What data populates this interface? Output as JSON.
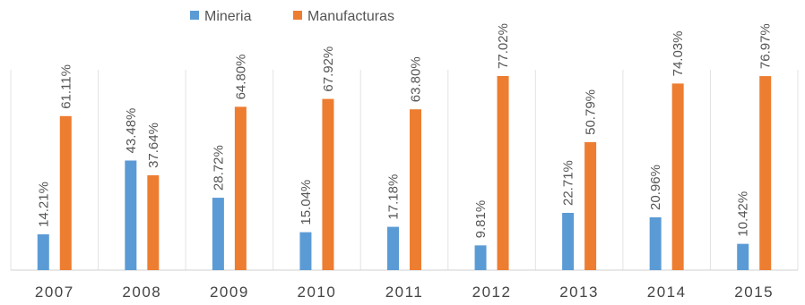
{
  "chart_data": {
    "type": "bar",
    "categories": [
      "2007",
      "2008",
      "2009",
      "2010",
      "2011",
      "2012",
      "2013",
      "2014",
      "2015"
    ],
    "series": [
      {
        "name": "Mineria",
        "color": "#5B9BD5",
        "values": [
          14.21,
          43.48,
          28.72,
          15.04,
          17.18,
          9.81,
          22.71,
          20.96,
          10.42
        ],
        "labels": [
          "14.21%",
          "43.48%",
          "28.72%",
          "15.04%",
          "17.18%",
          "9.81%",
          "22.71%",
          "20.96%",
          "10.42%"
        ]
      },
      {
        "name": "Manufacturas",
        "color": "#ED7D31",
        "values": [
          61.11,
          37.64,
          64.8,
          67.92,
          63.8,
          77.02,
          50.79,
          74.03,
          76.97
        ],
        "labels": [
          "61.11%",
          "37.64%",
          "64.80%",
          "67.92%",
          "63.80%",
          "77.02%",
          "50.79%",
          "74.03%",
          "76.97%"
        ]
      }
    ],
    "title": "",
    "xlabel": "",
    "ylabel": "",
    "ylim": [
      0,
      80
    ],
    "legend_position": "top-left",
    "grid": "vertical category separators"
  }
}
